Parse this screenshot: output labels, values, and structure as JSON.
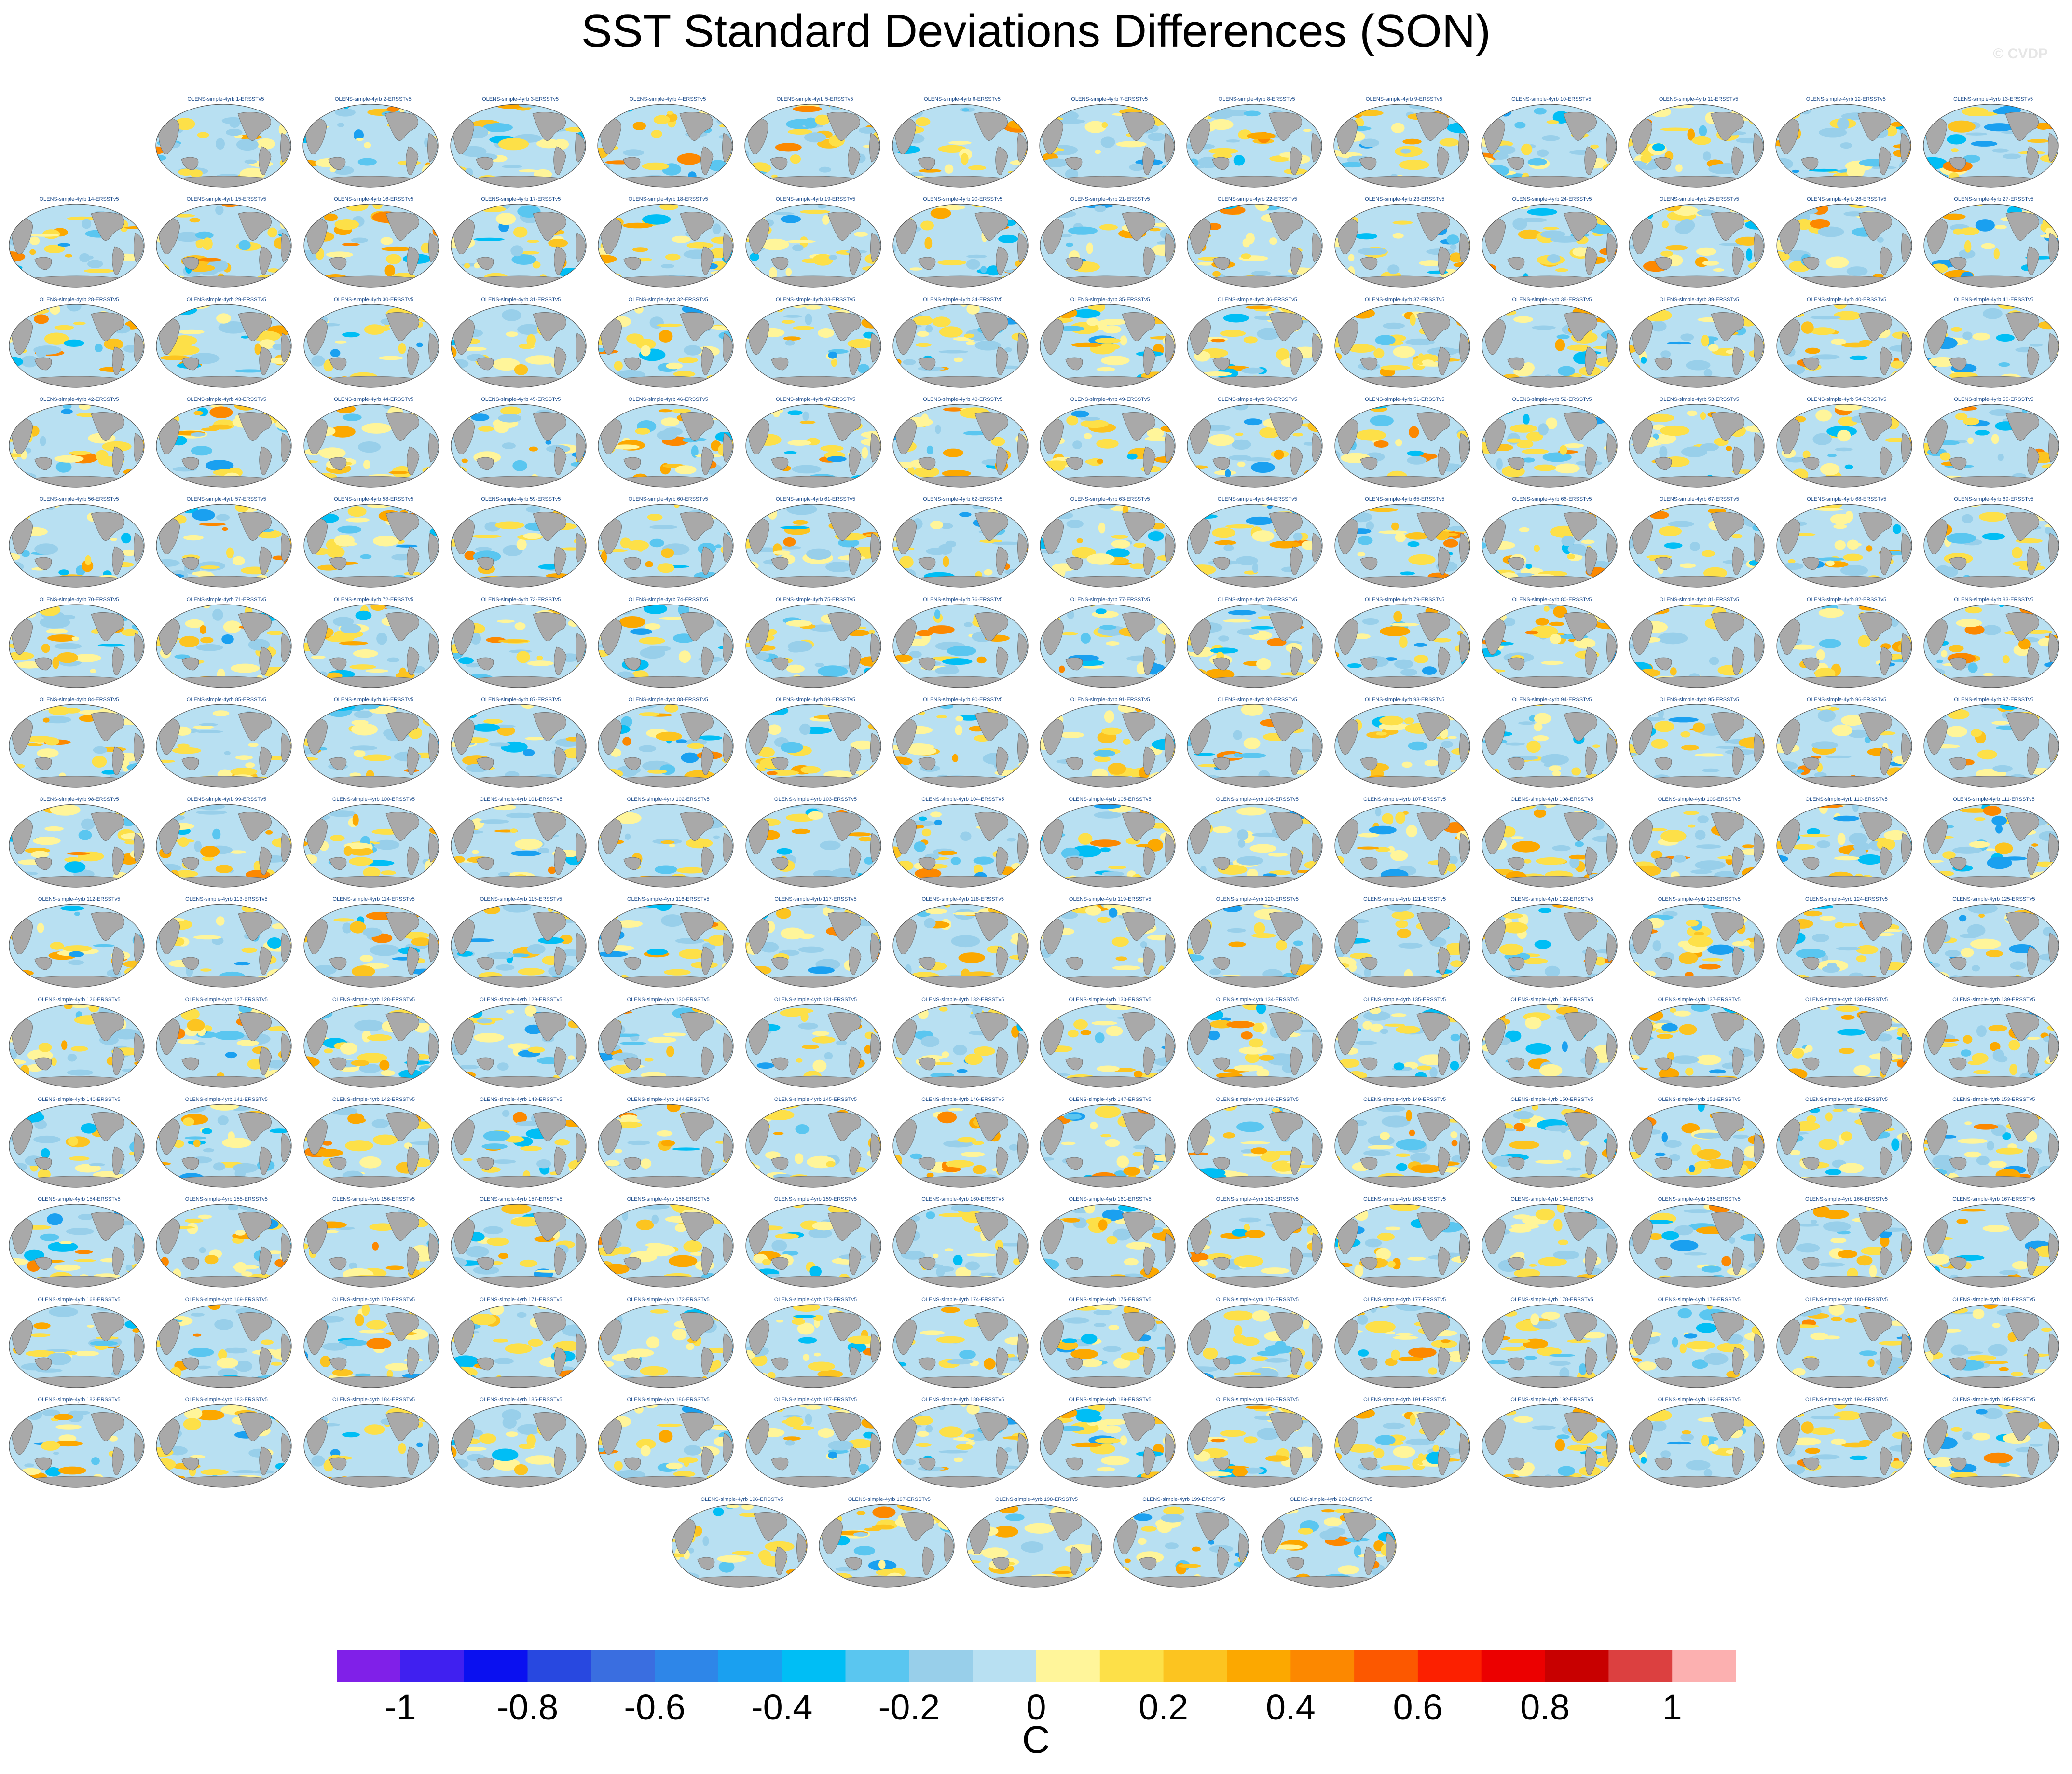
{
  "title": "SST Standard Deviations Differences (SON)",
  "watermark": "© CVDP",
  "chart_data": {
    "type": "heatmap",
    "title": "SST Standard Deviations Differences (SON)",
    "panel_label_template": "OLENS-simple-4yrb {n}-ERSSTv5",
    "panel_count": 200,
    "panel_labels": [],
    "colors": {
      "land": "#a9a9a9",
      "ocean_near_zero": "#b8e0f2",
      "map_outline": "#555555"
    },
    "colorbar": {
      "unit": "C",
      "min": -1.1,
      "max": 1.1,
      "tick_values": [
        -1,
        -0.8,
        -0.6,
        -0.4,
        -0.2,
        0,
        0.2,
        0.4,
        0.6,
        0.8,
        1
      ],
      "tick_labels": [
        "-1",
        "-0.8",
        "-0.6",
        "-0.4",
        "-0.2",
        "0",
        "0.2",
        "0.4",
        "0.6",
        "0.8",
        "1"
      ],
      "bin_edges": [
        -1.1,
        -1.0,
        -0.9,
        -0.8,
        -0.7,
        -0.6,
        -0.5,
        -0.4,
        -0.3,
        -0.2,
        -0.1,
        0,
        0.1,
        0.2,
        0.3,
        0.4,
        0.5,
        0.6,
        0.7,
        0.8,
        0.9,
        1.0,
        1.1
      ],
      "bin_colors": [
        "#8020e8",
        "#4020f0",
        "#0a10f0",
        "#2848e0",
        "#3a6ee0",
        "#2e86e8",
        "#1aa0f0",
        "#00bef5",
        "#5ac6f0",
        "#98cfea",
        "#b8e0f2",
        "#fff59a",
        "#fde048",
        "#fcc420",
        "#fca800",
        "#fc8800",
        "#fc5800",
        "#fc2000",
        "#ec0000",
        "#c80000",
        "#dc4040",
        "#fcb0b0"
      ]
    }
  }
}
